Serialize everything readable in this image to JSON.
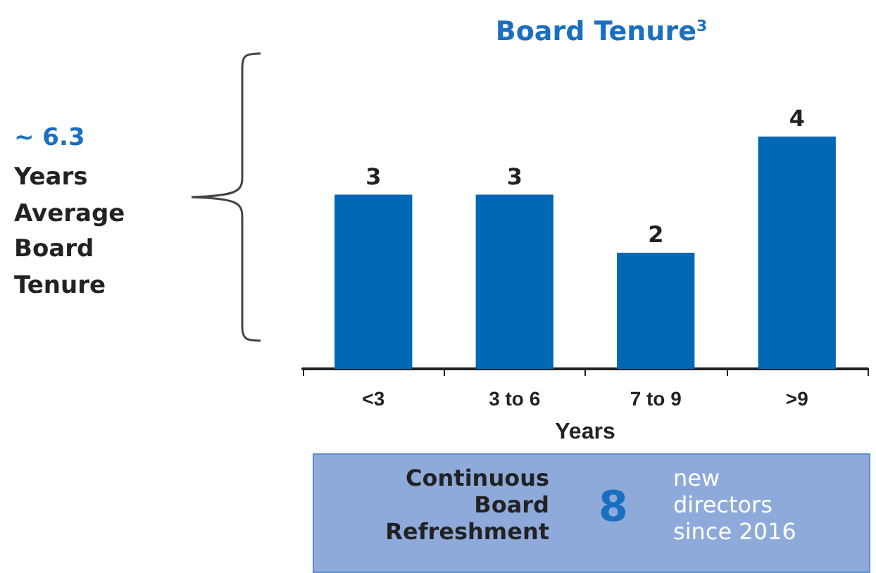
{
  "chart_data": {
    "type": "bar",
    "title": "Board Tenure$^{3}$",
    "xlabel": "Years",
    "categories": [
      "<3",
      "3 to 6",
      "7 to 9",
      ">9"
    ],
    "values": [
      3,
      3,
      2,
      4
    ],
    "color": "#0068b5",
    "data_labels": true,
    "grid": false,
    "annotations": [
      "~ 6.3",
      "Years\nAverage\nBoard\nTenure",
      "Continuous\nBoard\nRefreshment",
      "8",
      "new\ndirectors\nsince 2016"
    ]
  }
}
